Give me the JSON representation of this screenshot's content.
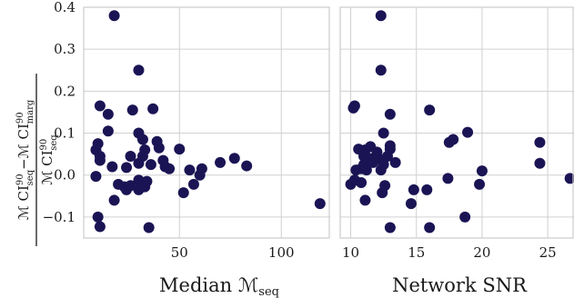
{
  "chart_data": [
    {
      "type": "scatter",
      "xlabel_main": "Median ",
      "xlabel_M": "ℳ",
      "xlabel_sub": "seq",
      "xlim": [
        3,
        124
      ],
      "ylim": [
        -0.15,
        0.4
      ],
      "xticks": [
        50,
        100
      ],
      "yticks": [
        -0.1,
        0.0,
        0.1,
        0.2,
        0.3,
        0.4
      ],
      "ytick_labels": [
        "−0.1",
        "0.0",
        "0.1",
        "0.2",
        "0.3",
        "0.4"
      ],
      "grid": true,
      "points": [
        {
          "x": 18,
          "y": 0.38
        },
        {
          "x": 30,
          "y": 0.25
        },
        {
          "x": 11,
          "y": 0.165
        },
        {
          "x": 15,
          "y": 0.145
        },
        {
          "x": 27,
          "y": 0.155
        },
        {
          "x": 37,
          "y": 0.158
        },
        {
          "x": 15,
          "y": 0.105
        },
        {
          "x": 30,
          "y": 0.1
        },
        {
          "x": 32,
          "y": 0.085
        },
        {
          "x": 39,
          "y": 0.08
        },
        {
          "x": 40,
          "y": 0.065
        },
        {
          "x": 10,
          "y": 0.075
        },
        {
          "x": 9,
          "y": 0.06
        },
        {
          "x": 33,
          "y": 0.06
        },
        {
          "x": 32,
          "y": 0.045
        },
        {
          "x": 26,
          "y": 0.045
        },
        {
          "x": 11,
          "y": 0.045
        },
        {
          "x": 11,
          "y": 0.035
        },
        {
          "x": 50,
          "y": 0.062
        },
        {
          "x": 36,
          "y": 0.025
        },
        {
          "x": 30,
          "y": 0.028
        },
        {
          "x": 42,
          "y": 0.035
        },
        {
          "x": 43,
          "y": 0.02
        },
        {
          "x": 45,
          "y": 0.015
        },
        {
          "x": 17,
          "y": 0.02
        },
        {
          "x": 24,
          "y": 0.018
        },
        {
          "x": 55,
          "y": 0.012
        },
        {
          "x": 61,
          "y": 0.015
        },
        {
          "x": 70,
          "y": 0.03
        },
        {
          "x": 77,
          "y": 0.04
        },
        {
          "x": 83,
          "y": 0.022
        },
        {
          "x": 60,
          "y": 0.0
        },
        {
          "x": 9,
          "y": -0.003
        },
        {
          "x": 30,
          "y": -0.012
        },
        {
          "x": 34,
          "y": -0.015
        },
        {
          "x": 20,
          "y": -0.022
        },
        {
          "x": 23,
          "y": -0.028
        },
        {
          "x": 26,
          "y": -0.025
        },
        {
          "x": 33,
          "y": -0.028
        },
        {
          "x": 30,
          "y": -0.035
        },
        {
          "x": 24,
          "y": -0.035
        },
        {
          "x": 57,
          "y": -0.022
        },
        {
          "x": 52,
          "y": -0.042
        },
        {
          "x": 18,
          "y": -0.06
        },
        {
          "x": 119,
          "y": -0.068
        },
        {
          "x": 10,
          "y": -0.1
        },
        {
          "x": 11,
          "y": -0.123
        },
        {
          "x": 35,
          "y": -0.125
        }
      ]
    },
    {
      "type": "scatter",
      "xlabel": "Network SNR",
      "xlim": [
        9.2,
        27
      ],
      "ylim": [
        -0.15,
        0.4
      ],
      "xticks": [
        10,
        15,
        20,
        25
      ],
      "grid": true,
      "points": [
        {
          "x": 12.3,
          "y": 0.38
        },
        {
          "x": 12.3,
          "y": 0.25
        },
        {
          "x": 10.3,
          "y": 0.165
        },
        {
          "x": 10.2,
          "y": 0.16
        },
        {
          "x": 16.0,
          "y": 0.155
        },
        {
          "x": 13.0,
          "y": 0.145
        },
        {
          "x": 12.5,
          "y": 0.1
        },
        {
          "x": 18.9,
          "y": 0.102
        },
        {
          "x": 17.8,
          "y": 0.085
        },
        {
          "x": 17.5,
          "y": 0.078
        },
        {
          "x": 24.4,
          "y": 0.078
        },
        {
          "x": 13.0,
          "y": 0.07
        },
        {
          "x": 11.5,
          "y": 0.068
        },
        {
          "x": 10.6,
          "y": 0.062
        },
        {
          "x": 11.1,
          "y": 0.06
        },
        {
          "x": 13.0,
          "y": 0.062
        },
        {
          "x": 12.0,
          "y": 0.055
        },
        {
          "x": 11.0,
          "y": 0.045
        },
        {
          "x": 11.4,
          "y": 0.04
        },
        {
          "x": 12.1,
          "y": 0.04
        },
        {
          "x": 12.8,
          "y": 0.045
        },
        {
          "x": 11.7,
          "y": 0.03
        },
        {
          "x": 13.4,
          "y": 0.03
        },
        {
          "x": 12.5,
          "y": 0.025
        },
        {
          "x": 11.0,
          "y": 0.025
        },
        {
          "x": 10.4,
          "y": 0.012
        },
        {
          "x": 10.8,
          "y": 0.015
        },
        {
          "x": 11.2,
          "y": 0.012
        },
        {
          "x": 12.3,
          "y": 0.012
        },
        {
          "x": 24.4,
          "y": 0.028
        },
        {
          "x": 20.0,
          "y": 0.01
        },
        {
          "x": 26.7,
          "y": -0.008
        },
        {
          "x": 17.4,
          "y": -0.008
        },
        {
          "x": 10.3,
          "y": -0.012
        },
        {
          "x": 10.8,
          "y": -0.018
        },
        {
          "x": 10.0,
          "y": -0.022
        },
        {
          "x": 19.8,
          "y": -0.022
        },
        {
          "x": 12.6,
          "y": -0.025
        },
        {
          "x": 12.4,
          "y": -0.042
        },
        {
          "x": 14.8,
          "y": -0.035
        },
        {
          "x": 15.8,
          "y": -0.035
        },
        {
          "x": 11.1,
          "y": -0.06
        },
        {
          "x": 14.6,
          "y": -0.068
        },
        {
          "x": 18.7,
          "y": -0.1
        },
        {
          "x": 13.0,
          "y": -0.125
        },
        {
          "x": 16.0,
          "y": -0.125
        }
      ]
    }
  ],
  "ylabel": {
    "top_left_M": "ℳ",
    "top_left_main": " CI",
    "top_left_sup": "90",
    "top_left_sub": "seq",
    "minus": "−",
    "top_right_M": "ℳ",
    "top_right_main": " CI",
    "top_right_sup": "90",
    "top_right_sub": "marg",
    "bottom_M": "ℳ",
    "bottom_main": " CI",
    "bottom_sup": "90",
    "bottom_sub": "seq"
  },
  "colors": {
    "point": "#1b1454",
    "grid": "#d0d0d0",
    "frame": "#cccccc"
  }
}
